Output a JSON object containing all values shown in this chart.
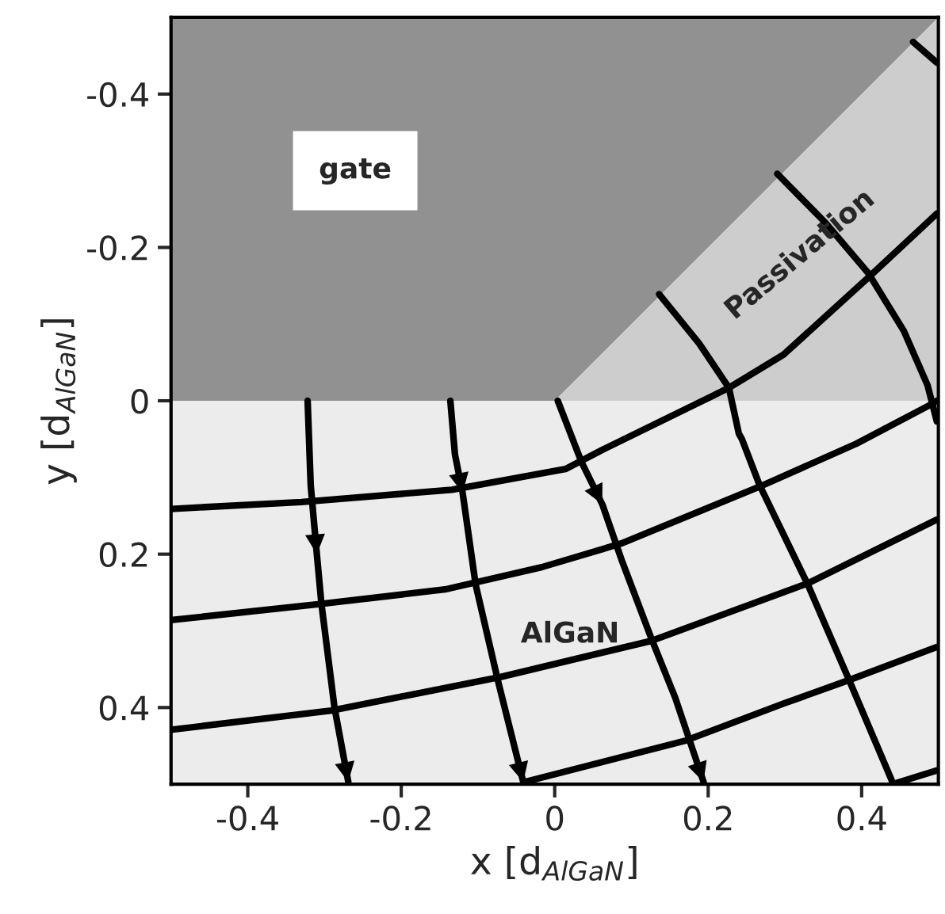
{
  "chart_data": {
    "type": "line",
    "xlabel": "x [d$_{AlGaN}$]",
    "ylabel": "y [d$_{AlGaN}$]",
    "xlim": [
      -0.5,
      0.5
    ],
    "ylim": [
      0.5,
      -0.5
    ],
    "xticks": [
      -0.4,
      -0.2,
      0,
      0.2,
      0.4
    ],
    "yticks": [
      -0.4,
      -0.2,
      0,
      0.2,
      0.4
    ],
    "grid": false,
    "legend": false,
    "marker": "none",
    "line_style": "solid",
    "annotations": [
      "gate",
      "Passivation",
      "AlGaN"
    ],
    "series": [
      {
        "color": "#000000",
        "x": [
          -0.322,
          -0.318,
          -0.31,
          -0.304,
          -0.287,
          -0.269
        ],
        "values": [
          0,
          0.11,
          0.2,
          0.265,
          0.4,
          0.497
        ]
      },
      {
        "color": "#000000",
        "x": [
          -0.136,
          -0.13,
          -0.12,
          -0.103,
          -0.074,
          -0.041
        ],
        "values": [
          0,
          0.07,
          0.12,
          0.24,
          0.365,
          0.497
        ]
      },
      {
        "color": "#000000",
        "x": [
          0.004,
          0.035,
          0.062,
          0.087,
          0.126,
          0.157,
          0.194
        ],
        "values": [
          0,
          0.08,
          0.135,
          0.207,
          0.31,
          0.387,
          0.497
        ]
      },
      {
        "color": "#000000",
        "x": [
          0.136,
          0.188,
          0.227,
          0.24,
          0.244,
          0.267,
          0.33,
          0.384,
          0.44
        ],
        "values": [
          -0.139,
          -0.075,
          -0.017,
          0.043,
          0.05,
          0.11,
          0.24,
          0.365,
          0.497
        ]
      },
      {
        "color": "#000000",
        "x": [
          0.29,
          0.353,
          0.409,
          0.455,
          0.486,
          0.498
        ],
        "values": [
          -0.296,
          -0.232,
          -0.166,
          -0.091,
          -0.02,
          0.027
        ]
      },
      {
        "color": "#000000",
        "x": [
          0.467,
          0.498
        ],
        "values": [
          -0.468,
          -0.441
        ]
      },
      {
        "color": "#000000",
        "x": [
          -0.5,
          -0.33,
          -0.134,
          0.014,
          0.062,
          0.205,
          0.227,
          0.298,
          0.409,
          0.498
        ],
        "values": [
          0.141,
          0.132,
          0.116,
          0.089,
          0.064,
          -0.006,
          -0.017,
          -0.06,
          -0.161,
          -0.244
        ]
      },
      {
        "color": "#000000",
        "x": [
          -0.5,
          -0.306,
          -0.143,
          -0.017,
          0.087,
          0.267,
          0.393,
          0.488,
          0.498
        ],
        "values": [
          0.286,
          0.265,
          0.246,
          0.217,
          0.186,
          0.112,
          0.056,
          0.006,
          0.0
        ]
      },
      {
        "color": "#000000",
        "x": [
          -0.5,
          -0.291,
          -0.07,
          0.126,
          0.33,
          0.498
        ],
        "values": [
          0.429,
          0.404,
          0.36,
          0.313,
          0.238,
          0.155
        ]
      },
      {
        "color": "#000000",
        "x": [
          -0.039,
          0.171,
          0.298,
          0.384,
          0.498
        ],
        "values": [
          0.497,
          0.443,
          0.395,
          0.364,
          0.321
        ]
      },
      {
        "color": "#000000",
        "x": [
          0.44,
          0.498
        ],
        "values": [
          0.5,
          0.482
        ]
      }
    ]
  }
}
